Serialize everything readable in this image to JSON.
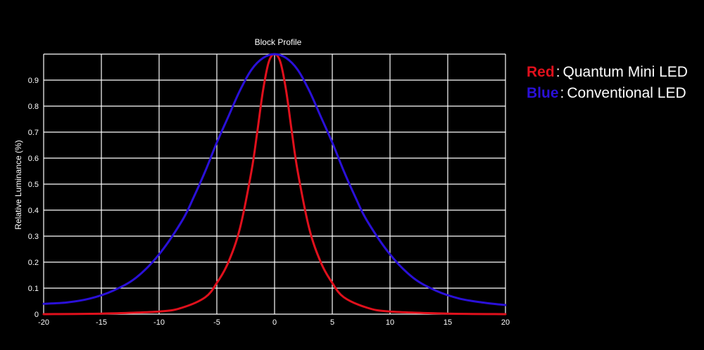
{
  "chart_data": {
    "type": "line",
    "title": "Block Profile",
    "xlabel": "",
    "ylabel": "Relative Luminance (%)",
    "xlim": [
      -20,
      20
    ],
    "ylim": [
      0,
      1
    ],
    "xticks": [
      -20,
      -15,
      -10,
      -5,
      0,
      5,
      10,
      15,
      20
    ],
    "yticks": [
      0,
      0.1,
      0.2,
      0.3,
      0.4,
      0.5,
      0.6,
      0.7,
      0.8,
      0.9
    ],
    "grid": true,
    "background": "#000000",
    "series": [
      {
        "color": "#e0101c",
        "x": [
          -20,
          -15,
          -10,
          -8,
          -6,
          -5,
          -4,
          -3,
          -2,
          -1.5,
          -1,
          -0.5,
          0,
          0.5,
          1,
          1.5,
          2,
          3,
          4,
          5,
          6,
          8,
          10,
          15,
          20
        ],
        "values": [
          0.0,
          0.002,
          0.01,
          0.025,
          0.065,
          0.12,
          0.2,
          0.33,
          0.55,
          0.7,
          0.86,
          0.97,
          1.0,
          0.97,
          0.86,
          0.7,
          0.55,
          0.33,
          0.2,
          0.12,
          0.065,
          0.025,
          0.01,
          0.002,
          0.0
        ]
      },
      {
        "color": "#2a10d8",
        "x": [
          -20,
          -18,
          -16,
          -14,
          -12,
          -10,
          -8,
          -7,
          -6,
          -5,
          -4,
          -3,
          -2,
          -1,
          0,
          1,
          2,
          3,
          4,
          5,
          6,
          7,
          8,
          10,
          12,
          14,
          16,
          18,
          20
        ],
        "values": [
          0.04,
          0.045,
          0.06,
          0.09,
          0.14,
          0.23,
          0.36,
          0.45,
          0.55,
          0.66,
          0.76,
          0.86,
          0.94,
          0.985,
          1.0,
          0.985,
          0.94,
          0.86,
          0.76,
          0.66,
          0.55,
          0.45,
          0.36,
          0.23,
          0.14,
          0.09,
          0.06,
          0.045,
          0.035
        ]
      }
    ]
  },
  "legend": {
    "items": [
      {
        "key": "Red",
        "separator": ":",
        "label": "Quantum Mini LED",
        "color": "#e0101c"
      },
      {
        "key": "Blue",
        "separator": ":",
        "label": "Conventional LED",
        "color": "#2a10d8"
      }
    ]
  }
}
